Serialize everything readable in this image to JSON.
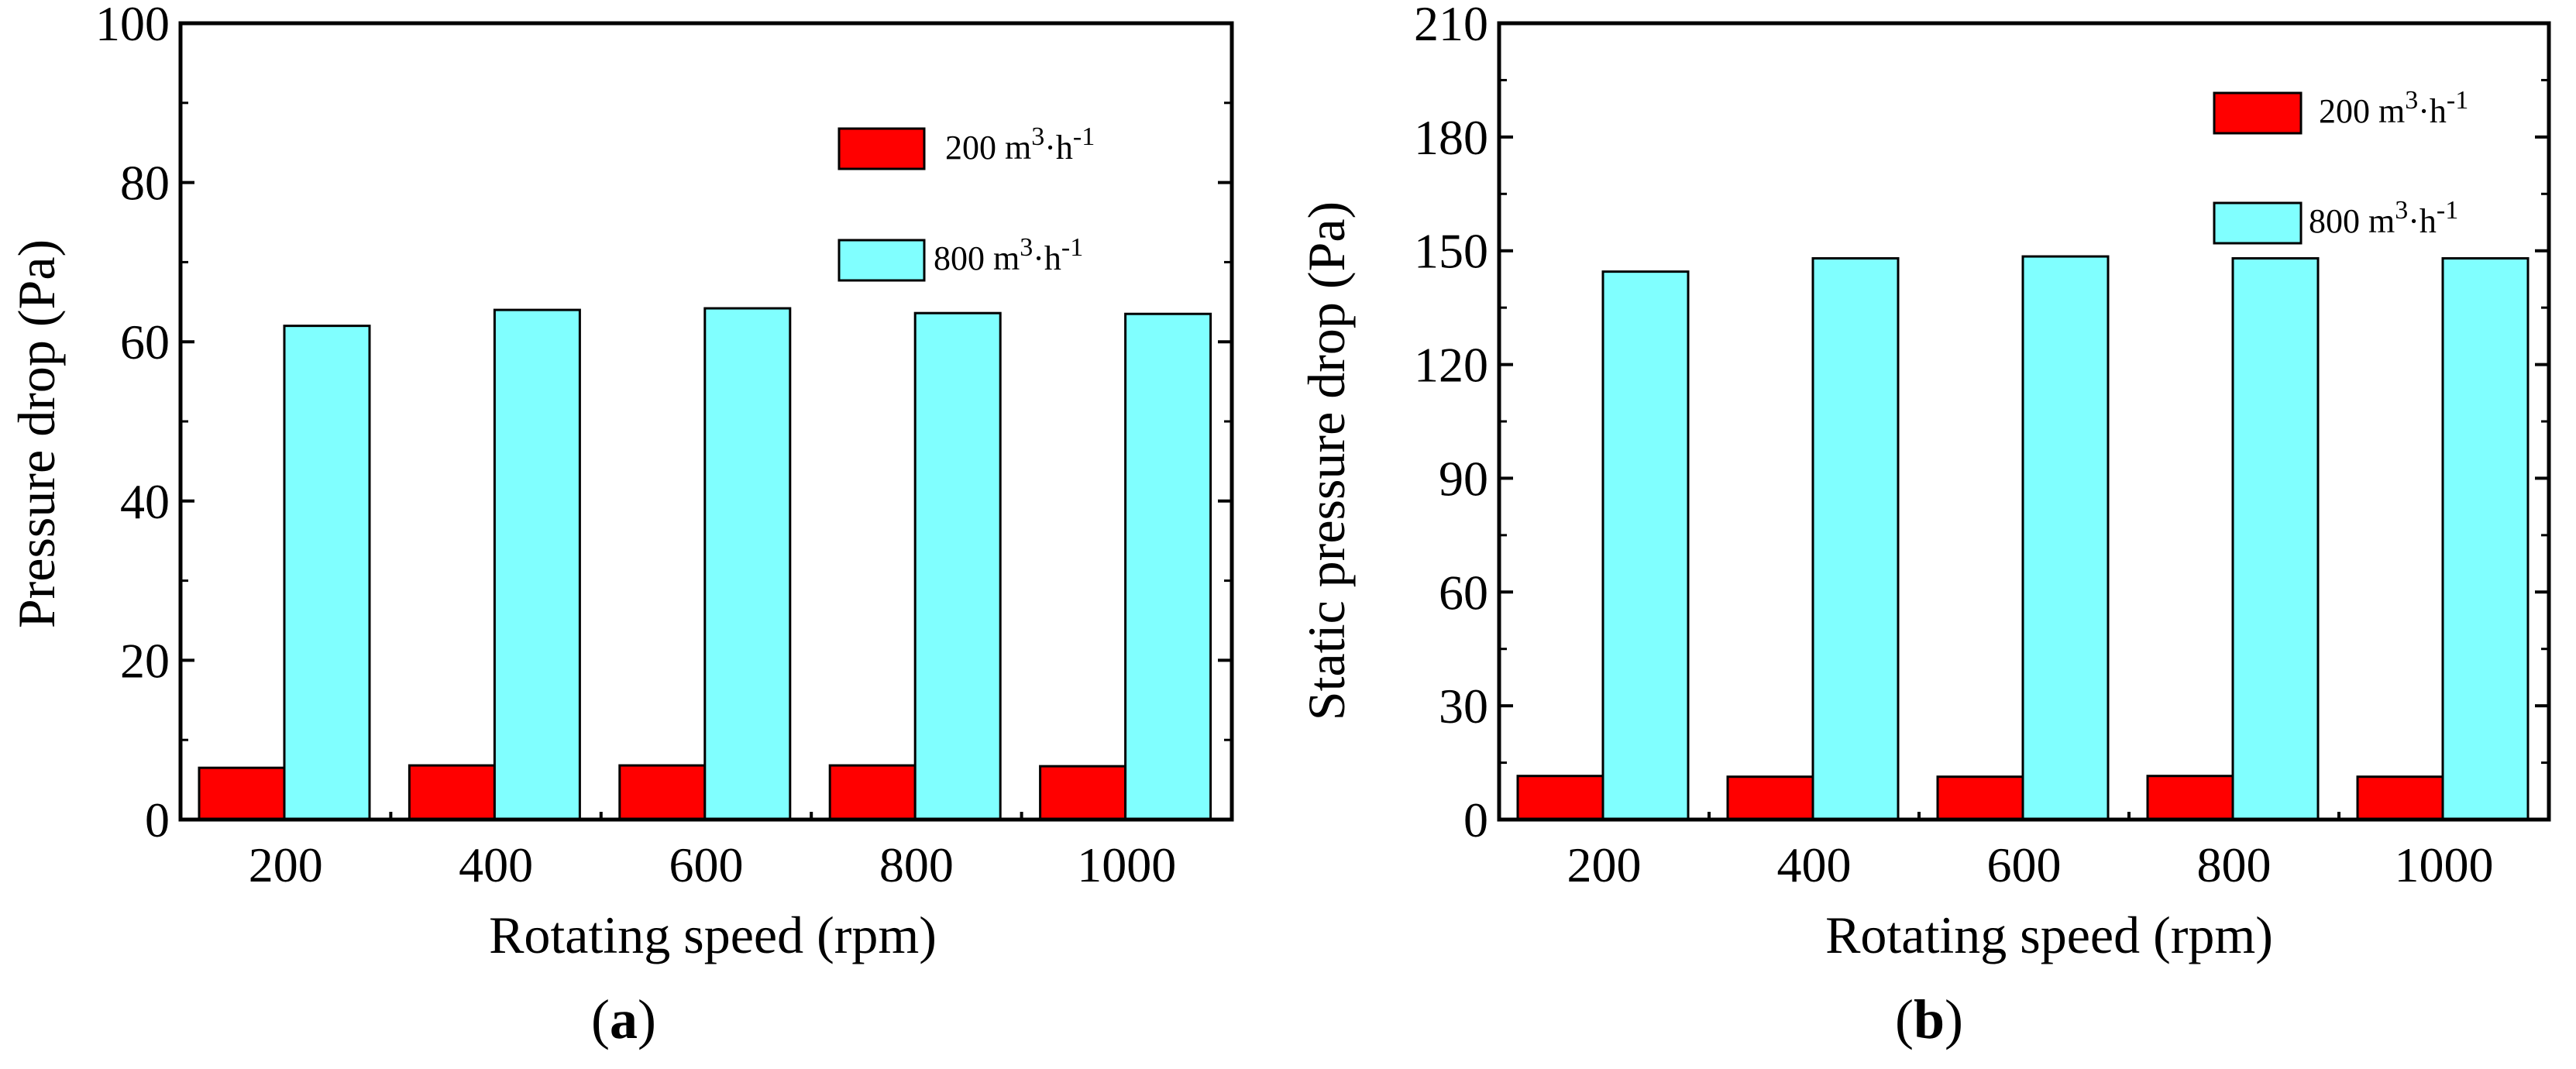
{
  "chart_data": [
    {
      "type": "bar",
      "panel": "a",
      "title": "",
      "xlabel": "Rotating speed (rpm)",
      "ylabel": "Pressure drop (Pa)",
      "ylim": [
        0,
        100
      ],
      "yticks": [
        0,
        20,
        40,
        60,
        80,
        100
      ],
      "categories": [
        "200",
        "400",
        "600",
        "800",
        "1000"
      ],
      "series": [
        {
          "name": "200 m3·h-1",
          "color": "#ff0000",
          "values": [
            6.5,
            6.8,
            6.8,
            6.8,
            6.7
          ]
        },
        {
          "name": "800 m3·h-1",
          "color": "#80ffff",
          "values": [
            62.0,
            64.0,
            64.2,
            63.6,
            63.5
          ]
        }
      ],
      "legend_position": "top-right",
      "caption": {
        "open": "(",
        "letter": "a",
        "close": ")"
      }
    },
    {
      "type": "bar",
      "panel": "b",
      "title": "",
      "xlabel": "Rotating speed (rpm)",
      "ylabel": "Static pressure drop (Pa)",
      "ylim": [
        0,
        210
      ],
      "yticks": [
        0,
        30,
        60,
        90,
        120,
        150,
        180,
        210
      ],
      "categories": [
        "200",
        "400",
        "600",
        "800",
        "1000"
      ],
      "series": [
        {
          "name": "200 m3·h-1",
          "color": "#ff0000",
          "values": [
            11.5,
            11.3,
            11.3,
            11.5,
            11.3
          ]
        },
        {
          "name": "800 m3·h-1",
          "color": "#80ffff",
          "values": [
            144.5,
            148.0,
            148.5,
            148.0,
            148.0
          ]
        }
      ],
      "legend_position": "top-right",
      "caption": {
        "open": "(",
        "letter": "b",
        "close": ")"
      }
    }
  ],
  "legend_text": [
    {
      "base": "200 m",
      "sup1": "3",
      "mid": "·h",
      "sup2": "-1"
    },
    {
      "base": "800 m",
      "sup1": "3",
      "mid": "·h",
      "sup2": "-1"
    }
  ],
  "colors": {
    "series_1": "#ff0000",
    "series_2": "#80ffff",
    "axis": "#000000"
  }
}
